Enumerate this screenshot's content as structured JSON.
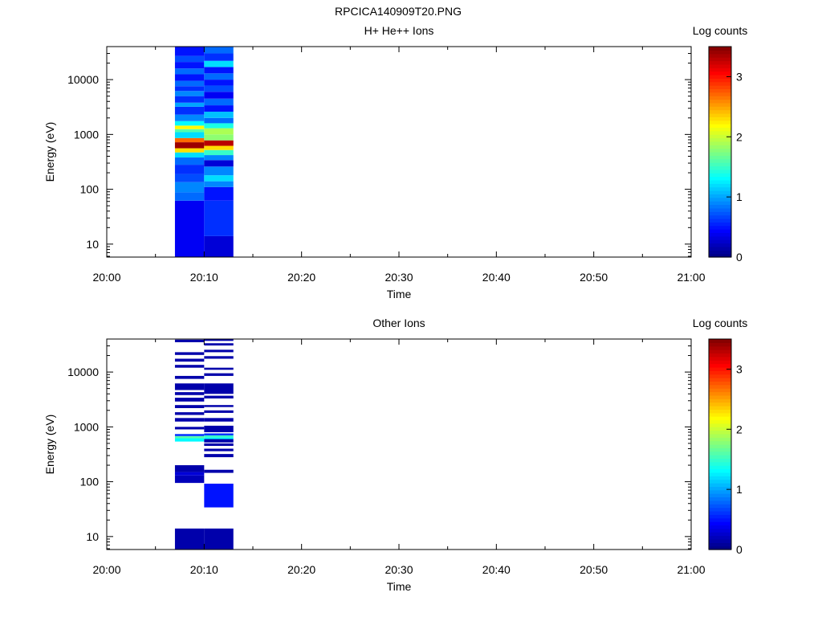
{
  "figure_title": "RPCICA140909T20.PNG",
  "chart_data": [
    {
      "type": "heatmap",
      "title": "H+ He++ Ions",
      "xlabel": "Time",
      "ylabel": "Energy (eV)",
      "x_ticks": [
        "20:00",
        "20:10",
        "20:20",
        "20:30",
        "20:40",
        "20:50",
        "21:00"
      ],
      "xlim": [
        "20:00",
        "21:00"
      ],
      "y_scale": "log",
      "y_ticks": [
        10,
        100,
        1000,
        10000
      ],
      "ylim": [
        5.8,
        40000
      ],
      "colorbar": {
        "label": "Log counts",
        "ticks": [
          0,
          1,
          2,
          3
        ],
        "range": [
          0,
          3.5
        ]
      },
      "columns": [
        {
          "t_start": "20:07",
          "t_end": "20:10",
          "bins": [
            {
              "e_lo": 5.8,
              "e_hi": 62,
              "v": 0.4
            },
            {
              "e_lo": 62,
              "e_hi": 88,
              "v": 0.8
            },
            {
              "e_lo": 88,
              "e_hi": 135,
              "v": 0.9
            },
            {
              "e_lo": 135,
              "e_hi": 190,
              "v": 0.7
            },
            {
              "e_lo": 190,
              "e_hi": 280,
              "v": 0.6
            },
            {
              "e_lo": 280,
              "e_hi": 380,
              "v": 0.8
            },
            {
              "e_lo": 380,
              "e_hi": 470,
              "v": 1.2
            },
            {
              "e_lo": 470,
              "e_hi": 560,
              "v": 2.3
            },
            {
              "e_lo": 560,
              "e_hi": 720,
              "v": 3.4
            },
            {
              "e_lo": 720,
              "e_hi": 860,
              "v": 2.7
            },
            {
              "e_lo": 860,
              "e_hi": 1100,
              "v": 1.2
            },
            {
              "e_lo": 1100,
              "e_hi": 1250,
              "v": 1.6
            },
            {
              "e_lo": 1250,
              "e_hi": 1450,
              "v": 2.2
            },
            {
              "e_lo": 1450,
              "e_hi": 1750,
              "v": 1.3
            },
            {
              "e_lo": 1750,
              "e_hi": 2300,
              "v": 0.9
            },
            {
              "e_lo": 2300,
              "e_hi": 3200,
              "v": 0.6
            },
            {
              "e_lo": 3200,
              "e_hi": 3800,
              "v": 1.0
            },
            {
              "e_lo": 3800,
              "e_hi": 5000,
              "v": 0.6
            },
            {
              "e_lo": 5000,
              "e_hi": 6200,
              "v": 0.9
            },
            {
              "e_lo": 6200,
              "e_hi": 7600,
              "v": 0.6
            },
            {
              "e_lo": 7600,
              "e_hi": 9500,
              "v": 0.8
            },
            {
              "e_lo": 9500,
              "e_hi": 12500,
              "v": 0.5
            },
            {
              "e_lo": 12500,
              "e_hi": 16000,
              "v": 0.8
            },
            {
              "e_lo": 16000,
              "e_hi": 21000,
              "v": 0.5
            },
            {
              "e_lo": 21000,
              "e_hi": 27000,
              "v": 0.7
            },
            {
              "e_lo": 27000,
              "e_hi": 40000,
              "v": 0.5
            }
          ]
        },
        {
          "t_start": "20:10",
          "t_end": "20:13",
          "bins": [
            {
              "e_lo": 5.8,
              "e_hi": 14,
              "v": 0.3
            },
            {
              "e_lo": 14,
              "e_hi": 62,
              "v": 0.6
            },
            {
              "e_lo": 62,
              "e_hi": 110,
              "v": 0.5
            },
            {
              "e_lo": 110,
              "e_hi": 140,
              "v": 0.9
            },
            {
              "e_lo": 140,
              "e_hi": 180,
              "v": 1.2
            },
            {
              "e_lo": 180,
              "e_hi": 260,
              "v": 0.9
            },
            {
              "e_lo": 260,
              "e_hi": 340,
              "v": 0.3
            },
            {
              "e_lo": 340,
              "e_hi": 420,
              "v": 0.9
            },
            {
              "e_lo": 420,
              "e_hi": 520,
              "v": 1.5
            },
            {
              "e_lo": 520,
              "e_hi": 620,
              "v": 2.3
            },
            {
              "e_lo": 620,
              "e_hi": 780,
              "v": 3.3
            },
            {
              "e_lo": 780,
              "e_hi": 1000,
              "v": 1.8
            },
            {
              "e_lo": 1000,
              "e_hi": 1300,
              "v": 1.9
            },
            {
              "e_lo": 1300,
              "e_hi": 1600,
              "v": 1.4
            },
            {
              "e_lo": 1600,
              "e_hi": 2000,
              "v": 0.8
            },
            {
              "e_lo": 2000,
              "e_hi": 2600,
              "v": 1.1
            },
            {
              "e_lo": 2600,
              "e_hi": 3400,
              "v": 0.5
            },
            {
              "e_lo": 3400,
              "e_hi": 4500,
              "v": 0.8
            },
            {
              "e_lo": 4500,
              "e_hi": 6000,
              "v": 0.4
            },
            {
              "e_lo": 6000,
              "e_hi": 7800,
              "v": 0.7
            },
            {
              "e_lo": 7800,
              "e_hi": 10000,
              "v": 0.5
            },
            {
              "e_lo": 10000,
              "e_hi": 13000,
              "v": 0.8
            },
            {
              "e_lo": 13000,
              "e_hi": 17000,
              "v": 0.5
            },
            {
              "e_lo": 17000,
              "e_hi": 22000,
              "v": 1.2
            },
            {
              "e_lo": 22000,
              "e_hi": 30000,
              "v": 0.6
            },
            {
              "e_lo": 30000,
              "e_hi": 40000,
              "v": 0.8
            }
          ]
        }
      ]
    },
    {
      "type": "heatmap",
      "title": "Other Ions",
      "xlabel": "Time",
      "ylabel": "Energy (eV)",
      "x_ticks": [
        "20:00",
        "20:10",
        "20:20",
        "20:30",
        "20:40",
        "20:50",
        "21:00"
      ],
      "xlim": [
        "20:00",
        "21:00"
      ],
      "y_scale": "log",
      "y_ticks": [
        10,
        100,
        1000,
        10000
      ],
      "ylim": [
        5.8,
        40000
      ],
      "colorbar": {
        "label": "Log counts",
        "ticks": [
          0,
          1,
          2,
          3
        ],
        "range": [
          0,
          3.5
        ]
      },
      "columns": [
        {
          "t_start": "20:07",
          "t_end": "20:10",
          "bins": [
            {
              "e_lo": 5.8,
              "e_hi": 14,
              "v": 0.15
            },
            {
              "e_lo": 95,
              "e_hi": 130,
              "v": 0.2
            },
            {
              "e_lo": 130,
              "e_hi": 150,
              "v": 0.3
            },
            {
              "e_lo": 150,
              "e_hi": 200,
              "v": 0.15
            },
            {
              "e_lo": 540,
              "e_hi": 620,
              "v": 1.3
            },
            {
              "e_lo": 620,
              "e_hi": 680,
              "v": 1.6
            },
            {
              "e_lo": 680,
              "e_hi": 740,
              "v": 0.6
            },
            {
              "e_lo": 900,
              "e_hi": 1000,
              "v": 0.15
            },
            {
              "e_lo": 1250,
              "e_hi": 1450,
              "v": 0.15
            },
            {
              "e_lo": 1650,
              "e_hi": 1850,
              "v": 0.15
            },
            {
              "e_lo": 2200,
              "e_hi": 2500,
              "v": 0.15
            },
            {
              "e_lo": 2900,
              "e_hi": 3400,
              "v": 0.15
            },
            {
              "e_lo": 3800,
              "e_hi": 4300,
              "v": 0.15
            },
            {
              "e_lo": 4700,
              "e_hi": 6200,
              "v": 0.15
            },
            {
              "e_lo": 7500,
              "e_hi": 8500,
              "v": 0.15
            },
            {
              "e_lo": 12000,
              "e_hi": 13500,
              "v": 0.15
            },
            {
              "e_lo": 15500,
              "e_hi": 17500,
              "v": 0.15
            },
            {
              "e_lo": 20500,
              "e_hi": 23000,
              "v": 0.15
            },
            {
              "e_lo": 35000,
              "e_hi": 39000,
              "v": 0.15
            }
          ]
        },
        {
          "t_start": "20:10",
          "t_end": "20:13",
          "bins": [
            {
              "e_lo": 5.8,
              "e_hi": 14,
              "v": 0.15
            },
            {
              "e_lo": 34,
              "e_hi": 92,
              "v": 0.5
            },
            {
              "e_lo": 145,
              "e_hi": 165,
              "v": 0.15
            },
            {
              "e_lo": 280,
              "e_hi": 320,
              "v": 0.15
            },
            {
              "e_lo": 360,
              "e_hi": 400,
              "v": 0.15
            },
            {
              "e_lo": 450,
              "e_hi": 500,
              "v": 0.15
            },
            {
              "e_lo": 520,
              "e_hi": 600,
              "v": 0.15
            },
            {
              "e_lo": 600,
              "e_hi": 640,
              "v": 1.3
            },
            {
              "e_lo": 640,
              "e_hi": 700,
              "v": 1.5
            },
            {
              "e_lo": 700,
              "e_hi": 760,
              "v": 0.6
            },
            {
              "e_lo": 800,
              "e_hi": 1050,
              "v": 0.15
            },
            {
              "e_lo": 1250,
              "e_hi": 1450,
              "v": 0.15
            },
            {
              "e_lo": 1800,
              "e_hi": 2000,
              "v": 0.15
            },
            {
              "e_lo": 2300,
              "e_hi": 2500,
              "v": 0.15
            },
            {
              "e_lo": 3300,
              "e_hi": 3700,
              "v": 0.15
            },
            {
              "e_lo": 4000,
              "e_hi": 6200,
              "v": 0.15
            },
            {
              "e_lo": 8500,
              "e_hi": 9500,
              "v": 0.15
            },
            {
              "e_lo": 11000,
              "e_hi": 12000,
              "v": 0.15
            },
            {
              "e_lo": 17500,
              "e_hi": 19500,
              "v": 0.15
            },
            {
              "e_lo": 23000,
              "e_hi": 25500,
              "v": 0.15
            },
            {
              "e_lo": 30500,
              "e_hi": 33500,
              "v": 0.15
            },
            {
              "e_lo": 37000,
              "e_hi": 40000,
              "v": 0.15
            }
          ]
        }
      ]
    }
  ]
}
